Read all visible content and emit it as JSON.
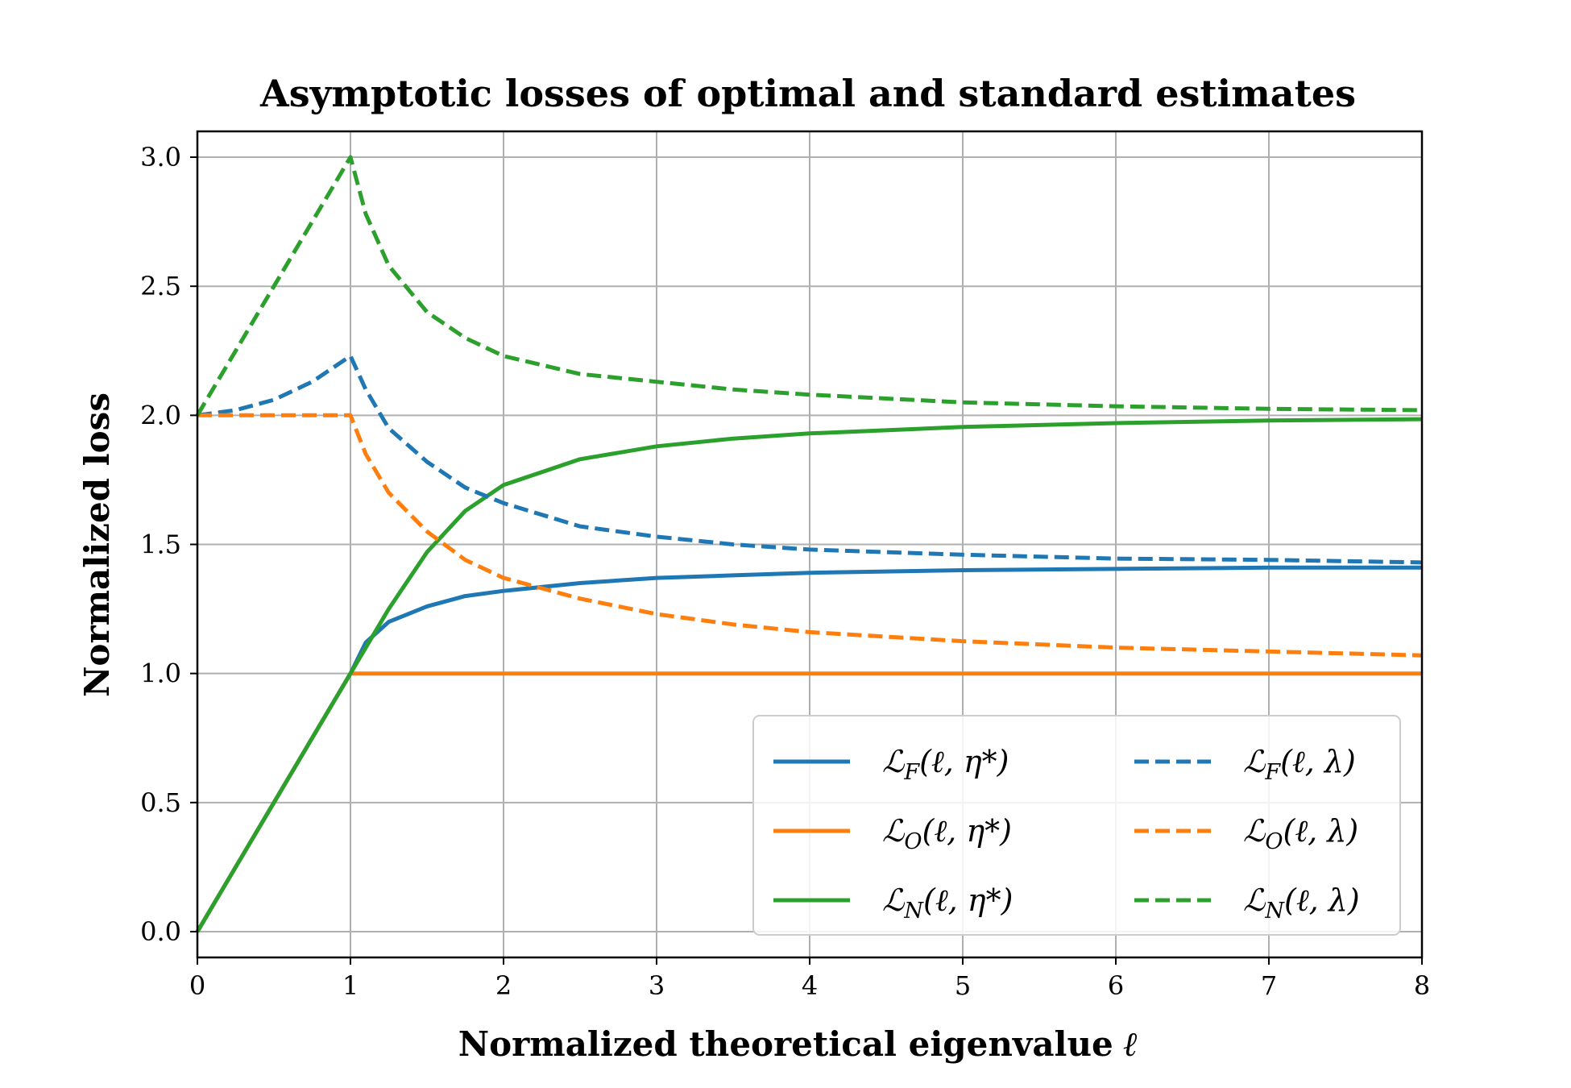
{
  "chart_data": {
    "type": "line",
    "title": "Asymptotic losses of optimal and standard estimates",
    "xlabel": "Normalized theoretical eigenvalue",
    "xlabel_symbol": "ℓ",
    "ylabel": "Normalized loss",
    "xlim": [
      0,
      8
    ],
    "ylim": [
      -0.1,
      3.1
    ],
    "grid": true,
    "legend_position": "lower-right",
    "legend_columns": 2,
    "x_ticks": [
      "0",
      "1",
      "2",
      "3",
      "4",
      "5",
      "6",
      "7",
      "8"
    ],
    "y_ticks": [
      "0.0",
      "0.5",
      "1.0",
      "1.5",
      "2.0",
      "2.5",
      "3.0"
    ],
    "x": [
      0,
      0.25,
      0.5,
      0.75,
      1,
      1.1,
      1.25,
      1.5,
      1.75,
      2,
      2.5,
      3,
      3.5,
      4,
      5,
      6,
      7,
      8
    ],
    "series": [
      {
        "name": "L_F(ℓ, η*)",
        "label_main": "ℒ",
        "label_sub": "F",
        "label_args": "(ℓ, η*)",
        "color": "#1f77b4",
        "style": "solid",
        "values": [
          0,
          0.25,
          0.5,
          0.75,
          1.0,
          1.12,
          1.2,
          1.26,
          1.3,
          1.32,
          1.35,
          1.37,
          1.38,
          1.39,
          1.4,
          1.405,
          1.41,
          1.41
        ]
      },
      {
        "name": "L_O(ℓ, η*)",
        "label_main": "ℒ",
        "label_sub": "O",
        "label_args": "(ℓ, η*)",
        "color": "#ff7f0e",
        "style": "solid",
        "values": [
          0,
          0.25,
          0.5,
          0.75,
          1.0,
          1.0,
          1.0,
          1.0,
          1.0,
          1.0,
          1.0,
          1.0,
          1.0,
          1.0,
          1.0,
          1.0,
          1.0,
          1.0
        ]
      },
      {
        "name": "L_N(ℓ, η*)",
        "label_main": "ℒ",
        "label_sub": "N",
        "label_args": "(ℓ, η*)",
        "color": "#2ca02c",
        "style": "solid",
        "values": [
          0,
          0.25,
          0.5,
          0.75,
          1.0,
          1.1,
          1.25,
          1.47,
          1.63,
          1.73,
          1.83,
          1.88,
          1.91,
          1.93,
          1.955,
          1.97,
          1.98,
          1.985
        ]
      },
      {
        "name": "L_F(ℓ, λ)",
        "label_main": "ℒ",
        "label_sub": "F",
        "label_args": "(ℓ, λ)",
        "color": "#1f77b4",
        "style": "dashed",
        "values": [
          2.0,
          2.02,
          2.06,
          2.13,
          2.23,
          2.1,
          1.95,
          1.82,
          1.72,
          1.66,
          1.57,
          1.53,
          1.5,
          1.48,
          1.46,
          1.445,
          1.44,
          1.43
        ]
      },
      {
        "name": "L_O(ℓ, λ)",
        "label_main": "ℒ",
        "label_sub": "O",
        "label_args": "(ℓ, λ)",
        "color": "#ff7f0e",
        "style": "dashed",
        "values": [
          2.0,
          2.0,
          2.0,
          2.0,
          2.0,
          1.85,
          1.7,
          1.55,
          1.44,
          1.37,
          1.29,
          1.23,
          1.19,
          1.16,
          1.125,
          1.1,
          1.085,
          1.07
        ]
      },
      {
        "name": "L_N(ℓ, λ)",
        "label_main": "ℒ",
        "label_sub": "N",
        "label_args": "(ℓ, λ)",
        "color": "#2ca02c",
        "style": "dashed",
        "values": [
          2.0,
          2.25,
          2.5,
          2.75,
          3.0,
          2.78,
          2.58,
          2.4,
          2.3,
          2.23,
          2.16,
          2.13,
          2.1,
          2.08,
          2.05,
          2.035,
          2.025,
          2.02
        ]
      }
    ]
  }
}
